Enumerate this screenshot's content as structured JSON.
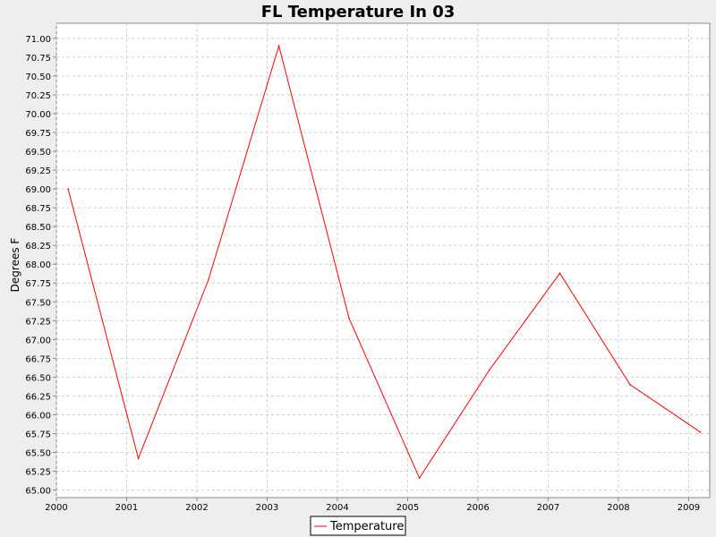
{
  "chart_data": {
    "type": "line",
    "title": "FL Temperature In 03",
    "xlabel": "",
    "ylabel": "Degrees F",
    "x_ticks": [
      "2000",
      "2001",
      "2002",
      "2003",
      "2004",
      "2005",
      "2006",
      "2007",
      "2008",
      "2009"
    ],
    "y_ticks": [
      "65.00",
      "65.25",
      "65.50",
      "65.75",
      "66.00",
      "66.25",
      "66.50",
      "66.75",
      "67.00",
      "67.25",
      "67.50",
      "67.75",
      "68.00",
      "68.25",
      "68.50",
      "68.75",
      "69.00",
      "69.25",
      "69.50",
      "69.75",
      "70.00",
      "70.25",
      "70.50",
      "70.75",
      "71.00"
    ],
    "xlim": [
      2000,
      2009.3
    ],
    "ylim": [
      64.9,
      71.2
    ],
    "grid": true,
    "legend_position": "bottom",
    "series": [
      {
        "name": "Temperature",
        "color": "#ff0000",
        "x": [
          "2000-03",
          "2001-03",
          "2002-03",
          "2003-03",
          "2004-03",
          "2005-03",
          "2006-03",
          "2007-03",
          "2008-03",
          "2009-03"
        ],
        "y": [
          69.0,
          65.42,
          67.8,
          70.9,
          67.28,
          65.16,
          66.6,
          67.88,
          66.4,
          65.77
        ]
      }
    ]
  }
}
